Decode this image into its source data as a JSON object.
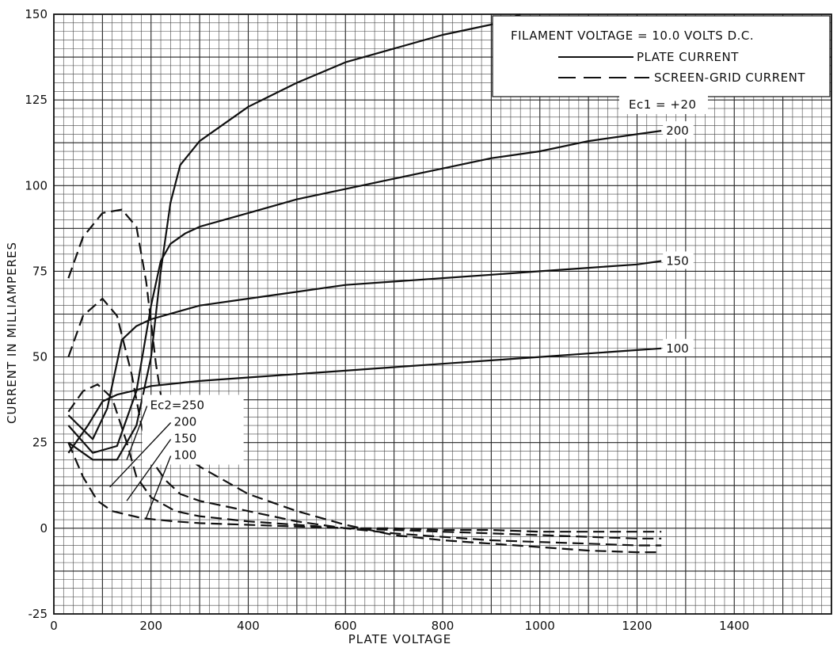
{
  "chart_data": {
    "type": "line",
    "title": "",
    "xlabel": "PLATE VOLTAGE",
    "ylabel": "CURRENT IN MILLIAMPERES",
    "xlim": [
      0,
      1600
    ],
    "ylim": [
      -25,
      150
    ],
    "x_ticks": [
      "0",
      "200",
      "400",
      "600",
      "800",
      "1000",
      "1200",
      "1400"
    ],
    "y_ticks": [
      "-25",
      "0",
      "25",
      "50",
      "75",
      "100",
      "125",
      "150"
    ],
    "grid": true,
    "legend": {
      "position": "top-right",
      "filament": "FILAMENT VOLTAGE = 10.0 VOLTS D.C.",
      "plate_current": "PLATE CURRENT",
      "screen_grid_current": "SCREEN-GRID CURRENT",
      "grid_bias": "Ec1 = +20"
    },
    "plate_series": [
      {
        "name": "Ec2=250",
        "label": "Ec2=250",
        "x": [
          30,
          80,
          130,
          170,
          200,
          220,
          240,
          260,
          300,
          400,
          500,
          600,
          700,
          800,
          900,
          960
        ],
        "y": [
          25,
          20,
          20,
          30,
          50,
          75,
          95,
          106,
          113,
          123,
          130,
          136,
          140,
          144,
          147,
          150
        ]
      },
      {
        "name": "200",
        "label": "200",
        "x": [
          30,
          80,
          130,
          170,
          200,
          220,
          240,
          270,
          300,
          400,
          500,
          600,
          700,
          800,
          900,
          1000,
          1100,
          1200,
          1250
        ],
        "y": [
          30,
          22,
          24,
          40,
          65,
          78,
          83,
          86,
          88,
          92,
          96,
          99,
          102,
          105,
          108,
          110,
          113,
          115,
          116
        ]
      },
      {
        "name": "150",
        "label": "150",
        "x": [
          30,
          80,
          110,
          140,
          170,
          200,
          250,
          300,
          400,
          500,
          600,
          700,
          800,
          900,
          1000,
          1100,
          1200,
          1250
        ],
        "y": [
          33,
          26,
          35,
          55,
          59,
          61,
          63,
          65,
          67,
          69,
          71,
          72,
          73,
          74,
          75,
          76,
          77,
          78
        ]
      },
      {
        "name": "100",
        "label": "100",
        "x": [
          30,
          70,
          100,
          130,
          160,
          200,
          300,
          400,
          500,
          600,
          700,
          800,
          900,
          1000,
          1100,
          1200,
          1250
        ],
        "y": [
          22,
          30,
          37,
          39,
          40,
          41.5,
          43,
          44,
          45,
          46,
          47,
          48,
          49,
          50,
          51,
          52,
          52.5
        ]
      }
    ],
    "screen_series": [
      {
        "name": "Ec2=250",
        "x": [
          30,
          60,
          100,
          140,
          170,
          190,
          210,
          230,
          260,
          300,
          400,
          500,
          600,
          700,
          800,
          900,
          1000,
          1100,
          1200,
          1250
        ],
        "y": [
          73,
          85,
          92,
          93,
          88,
          72,
          48,
          30,
          22,
          18,
          10,
          5,
          1,
          -2,
          -3.5,
          -4.5,
          -5.5,
          -6.5,
          -7,
          -7
        ]
      },
      {
        "name": "200",
        "x": [
          30,
          60,
          100,
          130,
          160,
          180,
          200,
          230,
          260,
          300,
          400,
          500,
          600,
          700,
          800,
          900,
          1000,
          1100,
          1200,
          1250
        ],
        "y": [
          50,
          62,
          67,
          62,
          45,
          30,
          20,
          14,
          10,
          8,
          5,
          2,
          0,
          -1.5,
          -2.5,
          -3.5,
          -4,
          -4.5,
          -5,
          -5
        ]
      },
      {
        "name": "150",
        "x": [
          30,
          60,
          90,
          120,
          150,
          170,
          200,
          250,
          300,
          400,
          500,
          600,
          700,
          800,
          900,
          1000,
          1100,
          1200,
          1250
        ],
        "y": [
          34,
          40,
          42,
          38,
          25,
          15,
          9,
          5,
          3.5,
          2,
          1,
          0,
          -0.5,
          -1,
          -1.5,
          -2,
          -2.5,
          -3,
          -3
        ]
      },
      {
        "name": "100",
        "x": [
          30,
          60,
          90,
          120,
          150,
          180,
          210,
          250,
          300,
          400,
          500,
          600,
          700,
          800,
          900,
          1000,
          1100,
          1200,
          1250
        ],
        "y": [
          25,
          15,
          8,
          5,
          4,
          3,
          2.5,
          2,
          1.5,
          1,
          0.5,
          0,
          0,
          -0.5,
          -0.5,
          -1,
          -1,
          -1,
          -1
        ]
      }
    ],
    "callout_labels": [
      "Ec2=250",
      "200",
      "150",
      "100"
    ]
  }
}
